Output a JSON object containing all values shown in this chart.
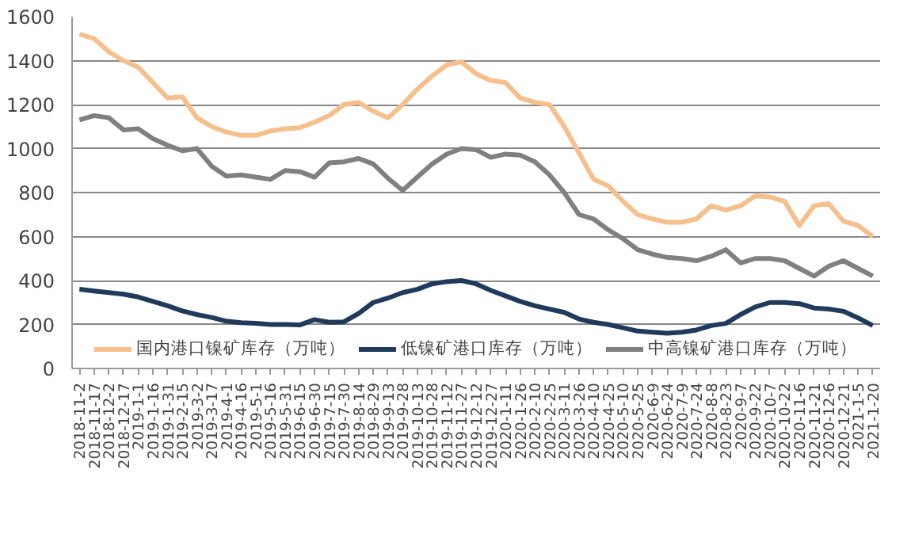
{
  "chart_data": {
    "type": "line",
    "categories": [
      "2018-11-2",
      "2018-11-17",
      "2018-12-2",
      "2018-12-17",
      "2019-1-1",
      "2019-1-16",
      "2019-1-31",
      "2019-2-15",
      "2019-3-2",
      "2019-3-17",
      "2019-4-1",
      "2019-4-16",
      "2019-5-1",
      "2019-5-16",
      "2019-5-31",
      "2019-6-15",
      "2019-6-30",
      "2019-7-15",
      "2019-7-30",
      "2019-8-14",
      "2019-8-29",
      "2019-9-13",
      "2019-9-28",
      "2019-10-13",
      "2019-10-28",
      "2019-11-12",
      "2019-11-27",
      "2019-12-12",
      "2019-12-27",
      "2020-1-11",
      "2020-1-26",
      "2020-2-10",
      "2020-2-25",
      "2020-3-11",
      "2020-3-26",
      "2020-4-10",
      "2020-4-25",
      "2020-5-10",
      "2020-5-25",
      "2020-6-9",
      "2020-6-24",
      "2020-7-9",
      "2020-7-24",
      "2020-8-8",
      "2020-8-23",
      "2020-9-7",
      "2020-9-22",
      "2020-10-7",
      "2020-10-22",
      "2020-11-6",
      "2020-11-21",
      "2020-12-6",
      "2020-12-21",
      "2021-1-5",
      "2021-1-20"
    ],
    "series": [
      {
        "name": "国内港口镍矿库存（万吨）",
        "color": "#f6c08c",
        "values": [
          1520,
          1500,
          1440,
          1400,
          1370,
          1300,
          1230,
          1235,
          1140,
          1100,
          1075,
          1060,
          1060,
          1080,
          1090,
          1095,
          1120,
          1150,
          1200,
          1210,
          1170,
          1140,
          1200,
          1270,
          1330,
          1380,
          1395,
          1340,
          1310,
          1300,
          1230,
          1210,
          1200,
          1100,
          980,
          860,
          830,
          760,
          700,
          680,
          665,
          665,
          680,
          740,
          720,
          740,
          785,
          780,
          760,
          650,
          740,
          750,
          670,
          650,
          600
        ]
      },
      {
        "name": "低镍矿港口库存（万吨）",
        "color": "#203a5c",
        "values": [
          360,
          352,
          345,
          338,
          325,
          305,
          285,
          262,
          245,
          232,
          215,
          208,
          205,
          200,
          200,
          198,
          222,
          210,
          212,
          250,
          300,
          320,
          345,
          360,
          385,
          395,
          400,
          385,
          355,
          330,
          305,
          285,
          270,
          255,
          225,
          210,
          200,
          185,
          170,
          165,
          160,
          165,
          175,
          195,
          205,
          245,
          280,
          300,
          300,
          295,
          275,
          270,
          260,
          230,
          195
        ]
      },
      {
        "name": "中高镍矿港口库存（万吨）",
        "color": "#808080",
        "values": [
          1130,
          1150,
          1140,
          1085,
          1090,
          1045,
          1015,
          990,
          1000,
          920,
          875,
          880,
          870,
          860,
          900,
          895,
          870,
          935,
          940,
          955,
          930,
          865,
          810,
          870,
          930,
          975,
          1000,
          995,
          960,
          975,
          970,
          940,
          880,
          800,
          700,
          680,
          630,
          590,
          540,
          520,
          505,
          500,
          490,
          510,
          540,
          480,
          500,
          500,
          490,
          455,
          420,
          465,
          490,
          455,
          420
        ]
      }
    ],
    "ylim": [
      0,
      1600
    ],
    "yticks": [
      0,
      200,
      400,
      600,
      800,
      1000,
      1200,
      1400,
      1600
    ],
    "grid": "y",
    "legend": "bottom",
    "line_style": "solid",
    "marker": "none"
  }
}
